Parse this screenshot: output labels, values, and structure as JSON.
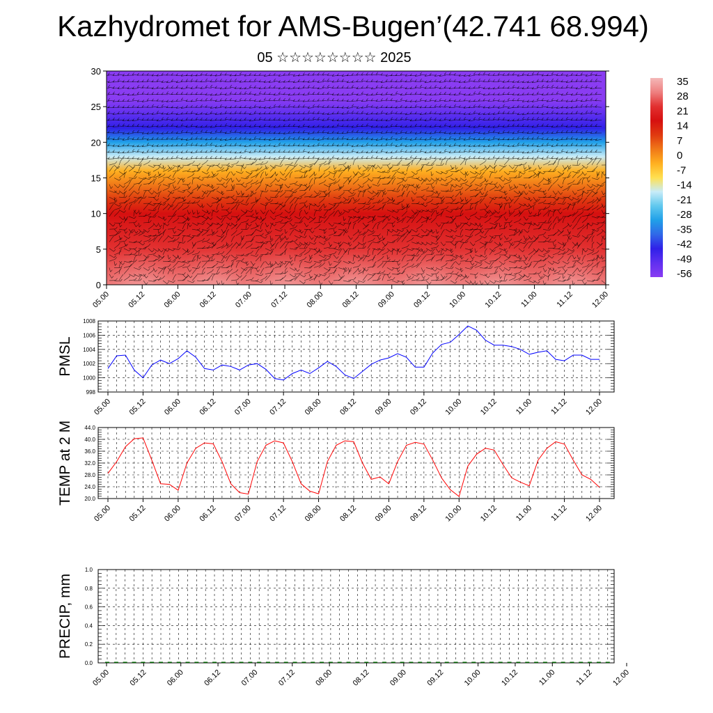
{
  "header": {
    "title": "Kazhydromet for AMS-Bugen’(42.741 68.994)",
    "subtitle": "05 ☆☆☆☆☆☆☆☆ 2025"
  },
  "colors": {
    "pmsl_line": "#0000ff",
    "temp_line": "#ff0000",
    "precip_bars": "#006400",
    "axis": "#000000"
  },
  "time_labels": [
    "05.00",
    "05.12",
    "06.00",
    "06.12",
    "07.00",
    "07.12",
    "08.00",
    "08.12",
    "09.00",
    "09.12",
    "10.00",
    "10.12",
    "11.00",
    "11.12",
    "12.00"
  ],
  "chart_data": [
    {
      "type": "heatmap",
      "description_of_axes": "time vs height",
      "x_tick_labels": [
        "05.00",
        "05.12",
        "06.00",
        "06.12",
        "07.00",
        "07.12",
        "08.00",
        "08.12",
        "09.00",
        "09.12",
        "10.00",
        "10.12",
        "11.00",
        "11.12",
        "12.00"
      ],
      "ylim": [
        0,
        30
      ],
      "y_ticks": [
        0,
        5,
        10,
        15,
        20,
        25,
        30
      ],
      "colorbar_labels": [
        "35",
        "28",
        "21",
        "14",
        "7",
        "0",
        "-7",
        "-14",
        "-21",
        "-28",
        "-35",
        "-42",
        "-49",
        "-56"
      ],
      "colorbar_colors": [
        "#f4b7b7",
        "#ee8080",
        "#e23030",
        "#d61010",
        "#e03a10",
        "#f07818",
        "#ffb020",
        "#ffe050",
        "#c8ecf8",
        "#60c8ee",
        "#20a0e8",
        "#3068e8",
        "#3020e8",
        "#6030f0",
        "#8a3cf2"
      ],
      "profile": [
        {
          "h": 0,
          "t": 30
        },
        {
          "h": 5,
          "t": 25
        },
        {
          "h": 10,
          "t": 18
        },
        {
          "h": 12,
          "t": 12
        },
        {
          "h": 14,
          "t": 4
        },
        {
          "h": 16,
          "t": -5
        },
        {
          "h": 18,
          "t": -18
        },
        {
          "h": 20,
          "t": -28
        },
        {
          "h": 22,
          "t": -40
        },
        {
          "h": 24,
          "t": -50
        },
        {
          "h": 26,
          "t": -56
        },
        {
          "h": 30,
          "t": -56
        }
      ]
    },
    {
      "type": "line",
      "ylabel": "PMSL",
      "ylim": [
        998,
        1008
      ],
      "y_ticks": [
        998,
        1000,
        1002,
        1004,
        1006,
        1008
      ],
      "series": [
        {
          "values": [
            1001.3,
            1003.1,
            1003.2,
            1001.1,
            1000.0,
            1001.8,
            1002.5,
            1002.0,
            1002.7,
            1003.8,
            1002.9,
            1001.3,
            1001.1,
            1001.8,
            1001.6,
            1001.1,
            1001.8,
            1002.0,
            1001.2,
            999.9,
            999.7,
            1000.6,
            1001.1,
            1000.6,
            1001.4,
            1002.3,
            1001.6,
            1000.4,
            999.9,
            1000.9,
            1001.9,
            1002.5,
            1002.8,
            1003.4,
            1002.9,
            1001.5,
            1001.5,
            1003.5,
            1004.7,
            1005.0,
            1006.1,
            1007.3,
            1006.7,
            1005.3,
            1004.6,
            1004.6,
            1004.4,
            1004.0,
            1003.3,
            1003.6,
            1003.8,
            1002.6,
            1002.4,
            1003.2,
            1003.2,
            1002.6,
            1002.6
          ]
        }
      ]
    },
    {
      "type": "line",
      "ylabel": "TEMP at 2 M",
      "ylim": [
        20.0,
        44.0
      ],
      "y_ticks": [
        "20.0",
        "24.0",
        "28.0",
        "32.0",
        "36.0",
        "40.0",
        "44.0"
      ],
      "series": [
        {
          "values": [
            28.5,
            32.5,
            37.5,
            40.2,
            40.5,
            33.0,
            25.0,
            24.8,
            22.8,
            32.0,
            37.0,
            38.8,
            38.5,
            32.5,
            25.0,
            22.0,
            21.5,
            32.5,
            38.0,
            39.5,
            38.8,
            32.5,
            25.0,
            22.5,
            21.6,
            32.5,
            38.0,
            39.5,
            39.2,
            32.0,
            26.5,
            27.3,
            25.0,
            32.5,
            38.0,
            39.0,
            38.4,
            33.0,
            27.0,
            23.0,
            20.7,
            31.0,
            35.0,
            37.0,
            36.4,
            31.5,
            27.0,
            25.5,
            24.3,
            33.0,
            37.0,
            39.2,
            38.4,
            33.0,
            28.0,
            26.5,
            23.8
          ]
        }
      ]
    },
    {
      "type": "bar",
      "ylabel": "PRECIP, mm",
      "ylim": [
        0.0,
        1.0
      ],
      "y_ticks": [
        "0.0",
        "0.2",
        "0.4",
        "0.6",
        "0.8",
        "1.0"
      ],
      "values": [
        0,
        0,
        0,
        0,
        0,
        0,
        0,
        0,
        0,
        0,
        0,
        0,
        0,
        0,
        0,
        0,
        0,
        0,
        0,
        0,
        0,
        0,
        0,
        0,
        0,
        0,
        0,
        0,
        0,
        0,
        0,
        0,
        0,
        0,
        0,
        0,
        0,
        0,
        0,
        0,
        0,
        0,
        0,
        0,
        0,
        0,
        0,
        0,
        0,
        0,
        0,
        0,
        0,
        0,
        0,
        0,
        0
      ]
    }
  ]
}
